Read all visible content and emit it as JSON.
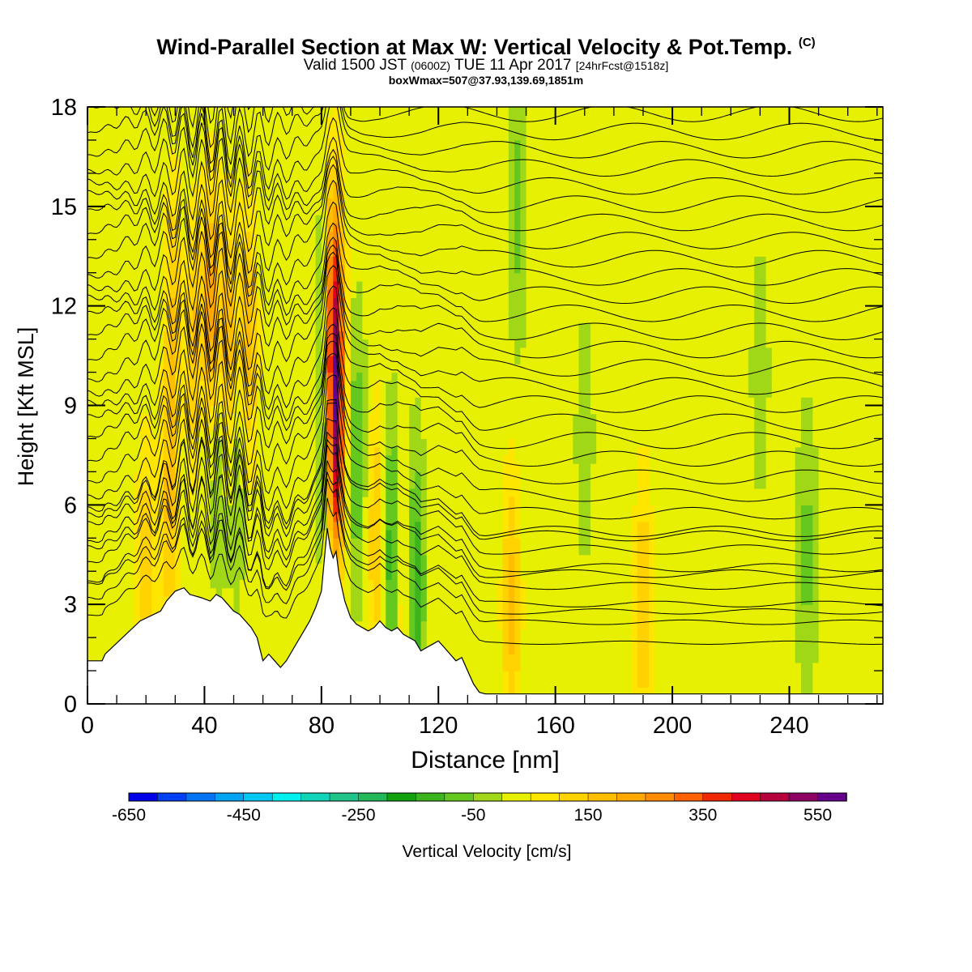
{
  "title": {
    "main": "Wind-Parallel Section at Max W: Vertical Velocity & Pot.Temp.",
    "copyright": "(C)",
    "valid_a": "Valid 1500 JST",
    "valid_b": "(0600Z)",
    "valid_c": "TUE 11 Apr 2017",
    "valid_d": "[24hrFcst@1518z]",
    "box": "boxWmax=507@37.93,139.69,1851m"
  },
  "chart_data": {
    "type": "heatmap",
    "xlabel": "Distance [nm]",
    "ylabel": "Height [Kft MSL]",
    "xlim": [
      0,
      272
    ],
    "ylim": [
      0,
      18
    ],
    "xticks": [
      "0",
      "40",
      "80",
      "120",
      "160",
      "200",
      "240"
    ],
    "yticks": [
      "0",
      "3",
      "6",
      "9",
      "12",
      "15",
      "18"
    ],
    "colorbar": {
      "label": "Vertical Velocity [cm/s]",
      "tick_labels": [
        "-650",
        "-450",
        "-250",
        "-50",
        "150",
        "350",
        "550"
      ],
      "levels": [
        -650,
        -600,
        -550,
        -500,
        -450,
        -400,
        -350,
        -300,
        -250,
        -200,
        -150,
        -100,
        -50,
        0,
        50,
        100,
        150,
        200,
        250,
        300,
        350,
        400,
        450,
        500,
        550,
        600
      ],
      "colors": [
        "#0000e6",
        "#0040f0",
        "#0074f2",
        "#00a2f2",
        "#00c8f2",
        "#00f0f0",
        "#10d4b8",
        "#1fc48a",
        "#22b85a",
        "#10a010",
        "#3cb41e",
        "#64c81e",
        "#a0d818",
        "#e6f000",
        "#ffe600",
        "#ffd200",
        "#ffbe00",
        "#ffa800",
        "#ff8c00",
        "#ff6000",
        "#f02800",
        "#e00020",
        "#b4003c",
        "#8c0064",
        "#64008c"
      ]
    },
    "base_velocity_cm_s": 20,
    "terrain": {
      "x_nm": [
        0,
        5,
        6,
        18,
        25,
        27,
        30,
        33,
        35,
        39,
        42,
        44,
        46,
        48,
        50,
        52,
        54,
        56,
        58,
        60,
        62,
        64,
        66,
        68,
        70,
        72,
        74,
        76,
        78,
        80,
        82,
        83,
        84,
        85,
        86,
        88,
        90,
        92,
        94,
        96,
        98,
        100,
        102,
        104,
        106,
        108,
        110,
        112,
        114,
        116,
        118,
        120,
        122,
        124,
        126,
        128,
        130,
        132,
        134,
        136,
        272
      ],
      "height_kft": [
        1.3,
        1.3,
        1.5,
        2.5,
        2.8,
        3.1,
        3.4,
        3.5,
        3.3,
        3.2,
        3.1,
        3.3,
        3.2,
        3.0,
        2.8,
        2.7,
        2.5,
        2.3,
        2.0,
        1.3,
        1.5,
        1.3,
        1.1,
        1.3,
        1.6,
        1.9,
        2.2,
        2.5,
        2.9,
        3.4,
        5.3,
        4.7,
        4.4,
        4.6,
        3.9,
        3.1,
        2.6,
        2.4,
        2.3,
        2.2,
        2.3,
        2.5,
        2.3,
        2.2,
        2.3,
        2.1,
        2.0,
        1.9,
        1.6,
        1.7,
        1.8,
        1.9,
        1.7,
        1.5,
        1.3,
        1.4,
        1.0,
        0.6,
        0.35,
        0.3,
        0.3
      ]
    },
    "velocity_features": [
      {
        "x_nm": 30,
        "z_kft": 12.0,
        "w_cm_s": 150
      },
      {
        "x_nm": 36,
        "z_kft": 10.5,
        "w_cm_s": 200
      },
      {
        "x_nm": 42,
        "z_kft": 11.5,
        "w_cm_s": 250
      },
      {
        "x_nm": 48,
        "z_kft": 10.5,
        "w_cm_s": 200
      },
      {
        "x_nm": 55,
        "z_kft": 11.0,
        "w_cm_s": 160
      },
      {
        "x_nm": 33,
        "z_kft": 11.0,
        "w_cm_s": -100
      },
      {
        "x_nm": 39,
        "z_kft": 9.0,
        "w_cm_s": -80
      },
      {
        "x_nm": 45,
        "z_kft": 8.0,
        "w_cm_s": -120
      },
      {
        "x_nm": 51,
        "z_kft": 7.5,
        "w_cm_s": -90
      },
      {
        "x_nm": 84,
        "z_kft": 12.0,
        "w_cm_s": 400
      },
      {
        "x_nm": 84.5,
        "z_kft": 8.0,
        "w_cm_s": 550
      },
      {
        "x_nm": 82.5,
        "z_kft": 8.0,
        "w_cm_s": -250
      },
      {
        "x_nm": 82,
        "z_kft": 12.0,
        "w_cm_s": -150
      },
      {
        "x_nm": 92,
        "z_kft": 7.5,
        "w_cm_s": -120
      },
      {
        "x_nm": 104,
        "z_kft": 4.5,
        "w_cm_s": -180
      },
      {
        "x_nm": 112,
        "z_kft": 3.5,
        "w_cm_s": -180
      },
      {
        "x_nm": 99,
        "z_kft": 5.0,
        "w_cm_s": 140
      },
      {
        "x_nm": 108,
        "z_kft": 3.0,
        "w_cm_s": 120
      },
      {
        "x_nm": 147,
        "z_kft": 15.0,
        "w_cm_s": -90
      },
      {
        "x_nm": 145,
        "z_kft": 3.0,
        "w_cm_s": 150
      },
      {
        "x_nm": 20,
        "z_kft": 4.0,
        "w_cm_s": 130
      },
      {
        "x_nm": 28,
        "z_kft": 6.0,
        "w_cm_s": 140
      },
      {
        "x_nm": 170,
        "z_kft": 8.0,
        "w_cm_s": -50
      },
      {
        "x_nm": 230,
        "z_kft": 10.0,
        "w_cm_s": -50
      },
      {
        "x_nm": 246,
        "z_kft": 4.5,
        "w_cm_s": -90
      },
      {
        "x_nm": 190,
        "z_kft": 3.0,
        "w_cm_s": 130
      }
    ],
    "isentropes": {
      "count": 34,
      "surface_kft_left": [
        1.6,
        2.0,
        2.6,
        3.2
      ],
      "lee_wave": {
        "x_nm": 44,
        "amplitude_kft": 0.9,
        "wavelength_nm": 6.5
      },
      "peak_wave": {
        "x_nm": 84,
        "amplitude_kft": 1.6
      }
    }
  }
}
